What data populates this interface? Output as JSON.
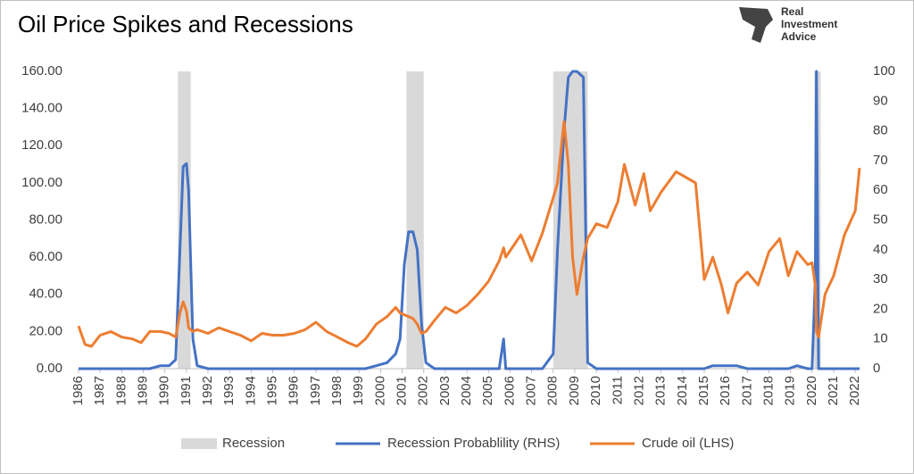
{
  "chart_data": {
    "type": "line",
    "title": "Oil Price Spikes and Recessions",
    "logo_text": [
      "Real",
      "Investment",
      "Advice"
    ],
    "x": [
      1986.0,
      1986.3,
      1986.6,
      1987.0,
      1987.5,
      1988.0,
      1988.5,
      1988.9,
      1989.3,
      1989.8,
      1990.2,
      1990.5,
      1990.7,
      1990.85,
      1991.0,
      1991.1,
      1991.3,
      1991.5,
      1992.0,
      1992.5,
      1993.0,
      1993.5,
      1994.0,
      1994.5,
      1995.0,
      1995.5,
      1996.0,
      1996.5,
      1997.0,
      1997.5,
      1998.0,
      1998.5,
      1998.9,
      1999.3,
      1999.8,
      2000.3,
      2000.7,
      2000.9,
      2001.1,
      2001.3,
      2001.5,
      2001.7,
      2001.9,
      2002.1,
      2002.5,
      2003.0,
      2003.5,
      2004.0,
      2004.5,
      2005.0,
      2005.5,
      2005.7,
      2005.8,
      2006.5,
      2007.0,
      2007.5,
      2008.0,
      2008.2,
      2008.5,
      2008.7,
      2008.9,
      2009.1,
      2009.4,
      2009.6,
      2010.0,
      2010.5,
      2011.0,
      2011.3,
      2011.8,
      2012.2,
      2012.5,
      2013.0,
      2013.7,
      2014.3,
      2014.6,
      2015.0,
      2015.4,
      2015.8,
      2016.1,
      2016.5,
      2017.0,
      2017.5,
      2018.0,
      2018.5,
      2018.9,
      2019.3,
      2019.8,
      2020.0,
      2020.15,
      2020.2,
      2020.3,
      2020.6,
      2021.0,
      2021.5,
      2022.0,
      2022.2
    ],
    "series": [
      {
        "name": "Recession Probablility (RHS)",
        "color": "#4472c4",
        "axis": "y2",
        "values": [
          0,
          0,
          0,
          0,
          0,
          0,
          0,
          0,
          0,
          1,
          1,
          3,
          40,
          68,
          69,
          60,
          10,
          1,
          0,
          0,
          0,
          0,
          0,
          0,
          0,
          0,
          0,
          0,
          0,
          0,
          0,
          0,
          0,
          0,
          1,
          2,
          5,
          10,
          35,
          46,
          46,
          40,
          15,
          2,
          0,
          0,
          0,
          0,
          0,
          0,
          0,
          10,
          0,
          0,
          0,
          0,
          5,
          40,
          80,
          98,
          100,
          100,
          98,
          2,
          0,
          0,
          0,
          0,
          0,
          0,
          0,
          0,
          0,
          0,
          0,
          0,
          1,
          1,
          1,
          1,
          0,
          0,
          0,
          0,
          0,
          1,
          0,
          0,
          30,
          100,
          0,
          0,
          0,
          0,
          0,
          0
        ]
      },
      {
        "name": "Crude oil (LHS)",
        "color": "#ed7d31",
        "axis": "y",
        "values": [
          23,
          13,
          12,
          18,
          20,
          17,
          16,
          14,
          20,
          20,
          19,
          17,
          30,
          36,
          31,
          22,
          20,
          21,
          19,
          22,
          20,
          18,
          15,
          19,
          18,
          18,
          19,
          21,
          25,
          20,
          17,
          14,
          12,
          16,
          24,
          28,
          33,
          30,
          29,
          28,
          27,
          24,
          19,
          20,
          26,
          33,
          30,
          34,
          40,
          47,
          58,
          65,
          60,
          72,
          58,
          73,
          92,
          100,
          133,
          110,
          60,
          40,
          60,
          70,
          78,
          76,
          90,
          110,
          88,
          105,
          85,
          95,
          106,
          102,
          100,
          48,
          60,
          45,
          30,
          46,
          52,
          45,
          63,
          70,
          50,
          63,
          56,
          57,
          45,
          20,
          17,
          40,
          50,
          72,
          85,
          108
        ]
      }
    ],
    "recessions": {
      "name": "Recession",
      "color": "#d9d9d9",
      "ranges": [
        [
          1990.6,
          1991.2
        ],
        [
          2001.2,
          2002.0
        ],
        [
          2008.0,
          2009.6
        ],
        [
          2020.1,
          2020.4
        ]
      ]
    },
    "xlim": [
      1986,
      2022.2
    ],
    "xticks": [
      1986,
      1987,
      1988,
      1989,
      1990,
      1991,
      1992,
      1993,
      1994,
      1995,
      1996,
      1997,
      1998,
      1999,
      2000,
      2001,
      2002,
      2003,
      2004,
      2005,
      2006,
      2007,
      2008,
      2009,
      2010,
      2011,
      2012,
      2013,
      2014,
      2015,
      2016,
      2017,
      2018,
      2019,
      2020,
      2021,
      2022
    ],
    "ylim": [
      0,
      160
    ],
    "yticks": [
      {
        "value": 0,
        "label": "0.00"
      },
      {
        "value": 20,
        "label": "20.00"
      },
      {
        "value": 40,
        "label": "40.00"
      },
      {
        "value": 60,
        "label": "60.00"
      },
      {
        "value": 80,
        "label": "80.00"
      },
      {
        "value": 100,
        "label": "100.00"
      },
      {
        "value": 120,
        "label": "120.00"
      },
      {
        "value": 140,
        "label": "140.00"
      },
      {
        "value": 160,
        "label": "160.00"
      }
    ],
    "y2lim": [
      0,
      100
    ],
    "y2ticks": [
      0,
      10,
      20,
      30,
      40,
      50,
      60,
      70,
      80,
      90,
      100
    ],
    "legend": "bottom"
  }
}
